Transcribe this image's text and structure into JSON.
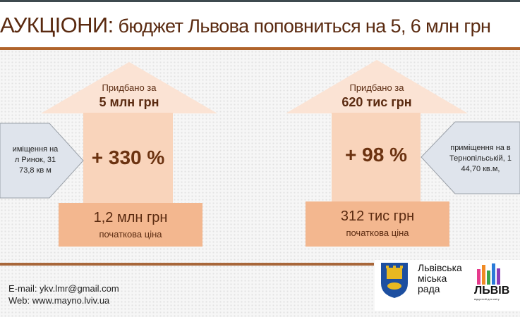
{
  "header": {
    "title_main": "АУКЦІОНИ:",
    "title_rest": " бюджет Львова поповниться на 5, 6 млн грн"
  },
  "left": {
    "bought_label": "Придбано за",
    "bought_value": "5 млн грн",
    "increase": "+ 330 %",
    "start_value": "1,2 млн грн",
    "start_label": "початкова ціна",
    "property": [
      "иміщення  на",
      "л Ринок, 31",
      "73,8 кв м"
    ]
  },
  "right": {
    "bought_label": "Придбано  за",
    "bought_value": "620 тис грн",
    "increase": "+ 98 %",
    "start_value": "312 тис грн",
    "start_label": "початкова ціна",
    "property": [
      "приміщення  на в",
      "Тернопільській,  1",
      "44,70 кв.м,"
    ]
  },
  "footer": {
    "email": "E-mail: ykv.lmr@gmail.com",
    "web": "Web: www.mayno.lviv.ua"
  },
  "logos": {
    "council": [
      "Львівська",
      "міська",
      "рада"
    ],
    "city": "ЛЬВІВ",
    "city_sub": "відкритий для світу"
  },
  "colors": {
    "title": "#5a2a10",
    "accent_line": "#b0642c",
    "arrow_top": "#fbe3d4",
    "arrow_shaft": "#f9d4bb",
    "price_box": "#f3b78f",
    "pentagon": "#dfe4ec"
  }
}
